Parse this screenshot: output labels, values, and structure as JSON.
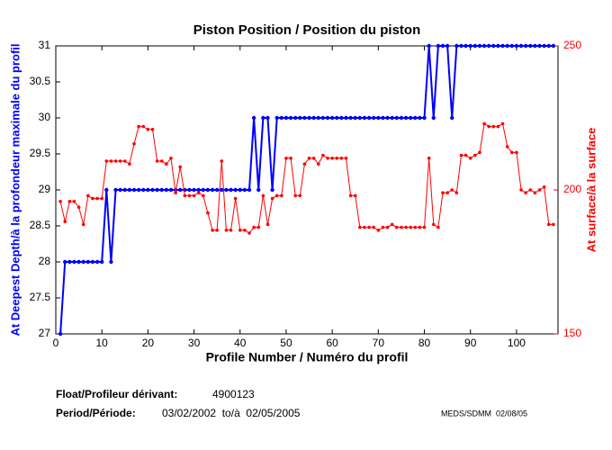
{
  "chart_data": {
    "type": "line",
    "title": "Piston Position / Position du piston",
    "xlabel": "Profile Number / Numéro du profil",
    "ylabel": "At Deepest Depth/à la profondeur maximale du profil",
    "y2label": "At surface/à la surface",
    "x": [
      1,
      2,
      3,
      4,
      5,
      6,
      7,
      8,
      9,
      10,
      11,
      12,
      13,
      14,
      15,
      16,
      17,
      18,
      19,
      20,
      21,
      22,
      23,
      24,
      25,
      26,
      27,
      28,
      29,
      30,
      31,
      32,
      33,
      34,
      35,
      36,
      37,
      38,
      39,
      40,
      41,
      42,
      43,
      44,
      45,
      46,
      47,
      48,
      49,
      50,
      51,
      52,
      53,
      54,
      55,
      56,
      57,
      58,
      59,
      60,
      61,
      62,
      63,
      64,
      65,
      66,
      67,
      68,
      69,
      70,
      71,
      72,
      73,
      74,
      75,
      76,
      77,
      78,
      79,
      80,
      81,
      82,
      83,
      84,
      85,
      86,
      87,
      88,
      89,
      90,
      91,
      92,
      93,
      94,
      95,
      96,
      97,
      98,
      99,
      100,
      101,
      102,
      103,
      104,
      105,
      106,
      107,
      108
    ],
    "series": [
      {
        "color": "#0000ff",
        "axis": "y",
        "values": [
          27,
          28,
          28,
          28,
          28,
          28,
          28,
          28,
          28,
          28,
          29,
          28,
          29,
          29,
          29,
          29,
          29,
          29,
          29,
          29,
          29,
          29,
          29,
          29,
          29,
          29,
          29,
          29,
          29,
          29,
          29,
          29,
          29,
          29,
          29,
          29,
          29,
          29,
          29,
          29,
          29,
          29,
          30,
          29,
          30,
          30,
          29,
          30,
          30,
          30,
          30,
          30,
          30,
          30,
          30,
          30,
          30,
          30,
          30,
          30,
          30,
          30,
          30,
          30,
          30,
          30,
          30,
          30,
          30,
          30,
          30,
          30,
          30,
          30,
          30,
          30,
          30,
          30,
          30,
          30,
          31,
          30,
          31,
          31,
          31,
          30,
          31,
          31,
          31,
          31,
          31,
          31,
          31,
          31,
          31,
          31,
          31,
          31,
          31,
          31,
          31,
          31,
          31,
          31,
          31,
          31,
          31,
          31
        ]
      },
      {
        "color": "#ff0000",
        "axis": "y2",
        "values": [
          196,
          189,
          196,
          196,
          194,
          188,
          198,
          197,
          197,
          197,
          210,
          210,
          210,
          210,
          210,
          209,
          216,
          222,
          222,
          221,
          221,
          210,
          210,
          209,
          211,
          199,
          208,
          198,
          198,
          198,
          199,
          198,
          192,
          186,
          186,
          210,
          186,
          186,
          197,
          186,
          186,
          185,
          187,
          187,
          198,
          188,
          197,
          198,
          198,
          211,
          211,
          198,
          198,
          209,
          211,
          211,
          209,
          212,
          211,
          211,
          211,
          211,
          211,
          198,
          198,
          187,
          187,
          187,
          187,
          186,
          187,
          187,
          188,
          187,
          187,
          187,
          187,
          187,
          187,
          187,
          211,
          188,
          187,
          199,
          199,
          200,
          199,
          212,
          212,
          211,
          212,
          213,
          223,
          222,
          222,
          222,
          223,
          215,
          213,
          213,
          200,
          199,
          200,
          199,
          200,
          201,
          188,
          188
        ]
      }
    ],
    "xlim": [
      0,
      109
    ],
    "xticks": [
      0,
      10,
      20,
      30,
      40,
      50,
      60,
      70,
      80,
      90,
      100
    ],
    "ylim": [
      27,
      31
    ],
    "yticks": [
      27,
      27.5,
      28,
      28.5,
      29,
      29.5,
      30,
      30.5,
      31
    ],
    "y2lim": [
      150,
      250
    ],
    "y2ticks": [
      150,
      200,
      250
    ]
  },
  "footer": {
    "float_label": "Float/Profileur dérivant:",
    "float_id": "4900123",
    "period_label": "Period/Période:",
    "period": "03/02/2002  to/à  02/05/2005",
    "credit": "MEDS/SDMM  02/08/05"
  }
}
